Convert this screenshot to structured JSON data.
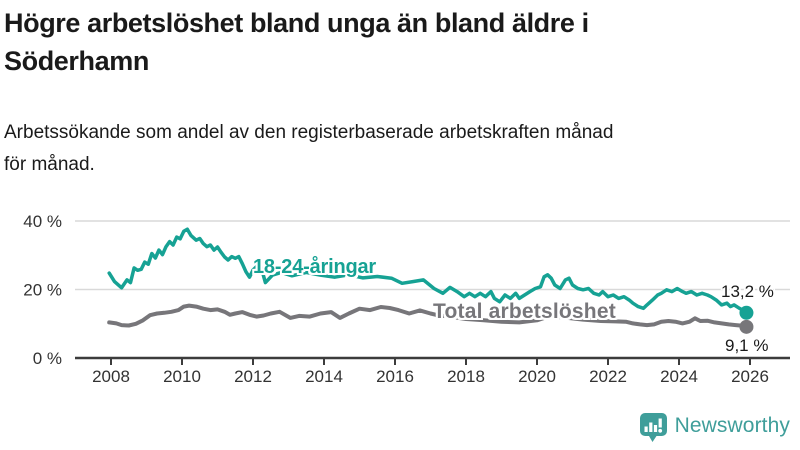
{
  "header": {
    "title_lines": [
      "Högre arbetslöshet bland unga än bland äldre i",
      "Söderhamn"
    ],
    "subtitle_lines": [
      "Arbetssökande som andel av den registerbaserade arbetskraften månad",
      "för månad."
    ]
  },
  "colors": {
    "accent_teal": "#16a294",
    "series_gray": "#77767a",
    "grid": "#d9d9d9",
    "axis": "#3c3c3c",
    "tick_text": "#333333",
    "logo_teal": "#3f9e9a"
  },
  "footer": {
    "brand": "Newsworthy",
    "logo_icon": "bar-chart-speech-bubble"
  },
  "chart_data": {
    "type": "line",
    "title": "Högre arbetslöshet bland unga än bland äldre i Söderhamn",
    "subtitle": "Arbetssökande som andel av den registerbaserade arbetskraften månad för månad.",
    "xlabel": "",
    "ylabel": "",
    "xlim": [
      2007.8,
      2026.5
    ],
    "ylim": [
      0,
      43
    ],
    "grid": "horizontal",
    "legend_position": "inline-labels",
    "x_ticks": [
      2008,
      2010,
      2012,
      2014,
      2016,
      2018,
      2020,
      2022,
      2024,
      2026
    ],
    "y_ticks": [
      {
        "label": "0 %",
        "value": 0
      },
      {
        "label": "20 %",
        "value": 20
      },
      {
        "label": "40 %",
        "value": 40
      }
    ],
    "series": [
      {
        "id": "young",
        "name": "18-24-åringar",
        "color": "#16a294",
        "width": 3.5,
        "end_label": "13,2 %",
        "end_value": 13.2,
        "points": [
          [
            2007.95,
            24.8
          ],
          [
            2008.1,
            22.3
          ],
          [
            2008.3,
            20.5
          ],
          [
            2008.45,
            22.8
          ],
          [
            2008.55,
            22.0
          ],
          [
            2008.65,
            26.3
          ],
          [
            2008.75,
            25.6
          ],
          [
            2008.85,
            25.9
          ],
          [
            2008.95,
            28.0
          ],
          [
            2009.05,
            27.4
          ],
          [
            2009.15,
            30.5
          ],
          [
            2009.25,
            29.2
          ],
          [
            2009.35,
            31.5
          ],
          [
            2009.45,
            30.2
          ],
          [
            2009.55,
            32.5
          ],
          [
            2009.65,
            34.0
          ],
          [
            2009.75,
            33.0
          ],
          [
            2009.85,
            35.3
          ],
          [
            2009.95,
            34.8
          ],
          [
            2010.05,
            37.0
          ],
          [
            2010.15,
            37.6
          ],
          [
            2010.25,
            35.8
          ],
          [
            2010.4,
            34.4
          ],
          [
            2010.5,
            34.9
          ],
          [
            2010.6,
            33.4
          ],
          [
            2010.7,
            32.5
          ],
          [
            2010.8,
            33.0
          ],
          [
            2010.9,
            31.5
          ],
          [
            2011.0,
            32.4
          ],
          [
            2011.1,
            30.9
          ],
          [
            2011.2,
            29.5
          ],
          [
            2011.3,
            28.6
          ],
          [
            2011.4,
            29.6
          ],
          [
            2011.5,
            29.1
          ],
          [
            2011.6,
            29.6
          ],
          [
            2011.7,
            27.5
          ],
          [
            2011.8,
            25.2
          ],
          [
            2011.9,
            23.6
          ],
          [
            2012.0,
            25.7
          ],
          [
            2012.1,
            26.7
          ],
          [
            2012.2,
            27.6
          ],
          [
            2012.35,
            22.0
          ],
          [
            2012.55,
            24.2
          ],
          [
            2012.8,
            25.0
          ],
          [
            2013.1,
            24.0
          ],
          [
            2013.5,
            25.0
          ],
          [
            2013.9,
            24.2
          ],
          [
            2014.3,
            23.6
          ],
          [
            2014.7,
            24.3
          ],
          [
            2015.1,
            23.4
          ],
          [
            2015.5,
            23.8
          ],
          [
            2015.9,
            23.3
          ],
          [
            2016.2,
            21.8
          ],
          [
            2016.5,
            22.3
          ],
          [
            2016.8,
            22.8
          ],
          [
            2017.1,
            20.3
          ],
          [
            2017.35,
            18.9
          ],
          [
            2017.55,
            20.6
          ],
          [
            2017.75,
            19.4
          ],
          [
            2017.95,
            17.9
          ],
          [
            2018.1,
            18.9
          ],
          [
            2018.25,
            17.9
          ],
          [
            2018.4,
            18.9
          ],
          [
            2018.55,
            17.9
          ],
          [
            2018.7,
            19.4
          ],
          [
            2018.8,
            17.4
          ],
          [
            2018.95,
            16.4
          ],
          [
            2019.1,
            18.4
          ],
          [
            2019.25,
            17.4
          ],
          [
            2019.4,
            18.9
          ],
          [
            2019.5,
            17.4
          ],
          [
            2019.65,
            18.4
          ],
          [
            2019.8,
            19.4
          ],
          [
            2019.95,
            20.3
          ],
          [
            2020.1,
            20.8
          ],
          [
            2020.2,
            23.7
          ],
          [
            2020.3,
            24.3
          ],
          [
            2020.4,
            23.3
          ],
          [
            2020.5,
            21.3
          ],
          [
            2020.65,
            20.3
          ],
          [
            2020.8,
            22.8
          ],
          [
            2020.9,
            23.3
          ],
          [
            2021.0,
            21.3
          ],
          [
            2021.15,
            20.3
          ],
          [
            2021.3,
            19.9
          ],
          [
            2021.45,
            20.3
          ],
          [
            2021.6,
            18.9
          ],
          [
            2021.75,
            18.4
          ],
          [
            2021.85,
            19.4
          ],
          [
            2022.0,
            17.9
          ],
          [
            2022.15,
            18.4
          ],
          [
            2022.3,
            17.4
          ],
          [
            2022.45,
            17.9
          ],
          [
            2022.6,
            16.9
          ],
          [
            2022.7,
            16.0
          ],
          [
            2022.85,
            15.0
          ],
          [
            2023.0,
            14.5
          ],
          [
            2023.1,
            15.5
          ],
          [
            2023.25,
            16.9
          ],
          [
            2023.4,
            18.4
          ],
          [
            2023.5,
            18.9
          ],
          [
            2023.65,
            19.9
          ],
          [
            2023.8,
            19.4
          ],
          [
            2023.95,
            20.3
          ],
          [
            2024.1,
            19.4
          ],
          [
            2024.2,
            18.9
          ],
          [
            2024.35,
            19.4
          ],
          [
            2024.5,
            18.4
          ],
          [
            2024.65,
            18.9
          ],
          [
            2024.8,
            18.4
          ],
          [
            2024.9,
            17.9
          ],
          [
            2025.05,
            16.9
          ],
          [
            2025.2,
            15.5
          ],
          [
            2025.35,
            16.0
          ],
          [
            2025.45,
            15.0
          ],
          [
            2025.55,
            15.5
          ],
          [
            2025.7,
            14.5
          ],
          [
            2025.8,
            14.0
          ],
          [
            2025.9,
            13.2
          ]
        ]
      },
      {
        "id": "total",
        "name": "Total arbetslöshet",
        "color": "#77767a",
        "width": 4,
        "end_label": "9,1 %",
        "end_value": 9.1,
        "points": [
          [
            2007.95,
            10.4
          ],
          [
            2008.15,
            10.1
          ],
          [
            2008.3,
            9.6
          ],
          [
            2008.5,
            9.5
          ],
          [
            2008.7,
            10.0
          ],
          [
            2008.9,
            11.0
          ],
          [
            2009.1,
            12.5
          ],
          [
            2009.3,
            13.0
          ],
          [
            2009.5,
            13.2
          ],
          [
            2009.7,
            13.5
          ],
          [
            2009.9,
            14.0
          ],
          [
            2010.05,
            15.0
          ],
          [
            2010.2,
            15.3
          ],
          [
            2010.4,
            15.0
          ],
          [
            2010.6,
            14.4
          ],
          [
            2010.8,
            14.0
          ],
          [
            2011.0,
            14.2
          ],
          [
            2011.2,
            13.5
          ],
          [
            2011.35,
            12.6
          ],
          [
            2011.5,
            13.0
          ],
          [
            2011.7,
            13.4
          ],
          [
            2011.9,
            12.6
          ],
          [
            2012.1,
            12.1
          ],
          [
            2012.3,
            12.4
          ],
          [
            2012.5,
            13.0
          ],
          [
            2012.75,
            13.5
          ],
          [
            2013.05,
            11.7
          ],
          [
            2013.3,
            12.3
          ],
          [
            2013.6,
            12.1
          ],
          [
            2013.9,
            13.0
          ],
          [
            2014.2,
            13.4
          ],
          [
            2014.45,
            11.7
          ],
          [
            2014.7,
            13.0
          ],
          [
            2015.0,
            14.4
          ],
          [
            2015.3,
            14.0
          ],
          [
            2015.6,
            14.9
          ],
          [
            2015.85,
            14.6
          ],
          [
            2016.1,
            14.0
          ],
          [
            2016.4,
            13.0
          ],
          [
            2016.7,
            13.9
          ],
          [
            2017.0,
            13.0
          ],
          [
            2017.2,
            12.5
          ],
          [
            2017.6,
            12.0
          ],
          [
            2018.0,
            11.4
          ],
          [
            2018.5,
            11.0
          ],
          [
            2019.0,
            10.6
          ],
          [
            2019.5,
            10.4
          ],
          [
            2020.0,
            11.0
          ],
          [
            2020.35,
            12.2
          ],
          [
            2020.8,
            11.8
          ],
          [
            2021.3,
            11.2
          ],
          [
            2021.8,
            10.8
          ],
          [
            2022.2,
            10.7
          ],
          [
            2022.5,
            10.6
          ],
          [
            2022.7,
            10.1
          ],
          [
            2022.9,
            9.8
          ],
          [
            2023.1,
            9.6
          ],
          [
            2023.3,
            9.8
          ],
          [
            2023.5,
            10.6
          ],
          [
            2023.7,
            10.8
          ],
          [
            2023.9,
            10.6
          ],
          [
            2024.1,
            10.1
          ],
          [
            2024.3,
            10.6
          ],
          [
            2024.45,
            11.6
          ],
          [
            2024.6,
            10.8
          ],
          [
            2024.8,
            10.9
          ],
          [
            2025.0,
            10.4
          ],
          [
            2025.2,
            10.1
          ],
          [
            2025.4,
            9.8
          ],
          [
            2025.6,
            9.6
          ],
          [
            2025.8,
            9.4
          ],
          [
            2025.9,
            9.1
          ]
        ]
      }
    ]
  }
}
